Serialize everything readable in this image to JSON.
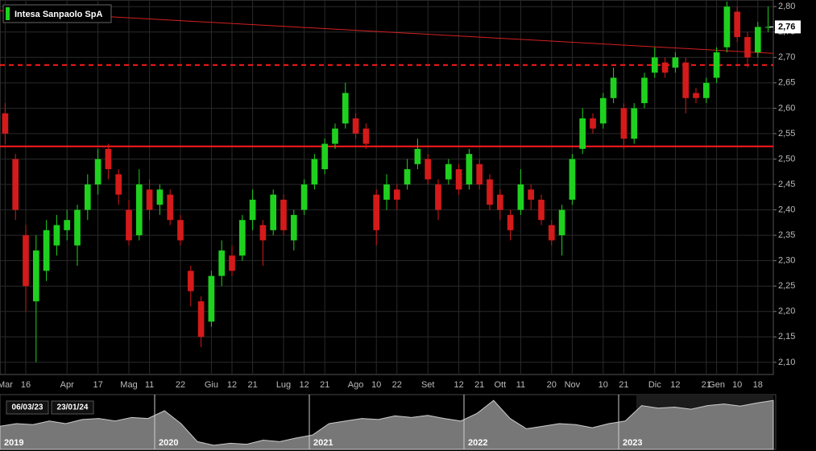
{
  "chart_data": {
    "type": "candlestick",
    "title": "Intesa Sanpaolo SpA",
    "categories": [
      "Mar",
      null,
      "16",
      null,
      null,
      null,
      "Apr",
      null,
      null,
      "17",
      null,
      null,
      "Mag",
      null,
      "11",
      null,
      null,
      "22",
      null,
      null,
      "Giu",
      null,
      "12",
      null,
      "21",
      null,
      null,
      "Lug",
      null,
      "12",
      null,
      "21",
      null,
      null,
      "Ago",
      null,
      "10",
      null,
      "22",
      null,
      null,
      "Set",
      null,
      null,
      "12",
      null,
      "21",
      null,
      "Ott",
      null,
      "11",
      null,
      null,
      "20",
      null,
      "Nov",
      null,
      null,
      "10",
      null,
      "21",
      null,
      null,
      "Dic",
      null,
      "12",
      null,
      null,
      "21",
      "Gen",
      null,
      "10",
      null,
      "18",
      null
    ],
    "open": [
      2.59,
      2.5,
      2.35,
      2.22,
      2.28,
      2.33,
      2.36,
      2.33,
      2.4,
      2.45,
      2.52,
      2.47,
      2.4,
      2.35,
      2.44,
      2.41,
      2.43,
      2.38,
      2.28,
      2.22,
      2.18,
      2.27,
      2.31,
      2.31,
      2.38,
      2.37,
      2.36,
      2.42,
      2.34,
      2.4,
      2.45,
      2.48,
      2.53,
      2.57,
      2.58,
      2.56,
      2.43,
      2.42,
      2.44,
      2.45,
      2.49,
      2.5,
      2.45,
      2.46,
      2.48,
      2.45,
      2.49,
      2.46,
      2.43,
      2.39,
      2.4,
      2.44,
      2.42,
      2.37,
      2.35,
      2.42,
      2.52,
      2.58,
      2.57,
      2.62,
      2.6,
      2.54,
      2.61,
      2.67,
      2.69,
      2.68,
      2.69,
      2.63,
      2.62,
      2.66,
      2.72,
      2.79,
      2.74,
      2.71,
      2.76
    ],
    "high": [
      2.61,
      2.51,
      2.37,
      2.35,
      2.38,
      2.39,
      2.4,
      2.41,
      2.47,
      2.52,
      2.53,
      2.48,
      2.42,
      2.48,
      2.46,
      2.45,
      2.44,
      2.39,
      2.29,
      2.23,
      2.28,
      2.34,
      2.33,
      2.39,
      2.44,
      2.38,
      2.44,
      2.43,
      2.4,
      2.46,
      2.51,
      2.54,
      2.57,
      2.65,
      2.59,
      2.57,
      2.44,
      2.47,
      2.45,
      2.5,
      2.54,
      2.51,
      2.46,
      2.5,
      2.49,
      2.52,
      2.5,
      2.47,
      2.44,
      2.4,
      2.48,
      2.45,
      2.43,
      2.38,
      2.41,
      2.51,
      2.6,
      2.59,
      2.63,
      2.68,
      2.61,
      2.61,
      2.67,
      2.72,
      2.7,
      2.71,
      2.7,
      2.64,
      2.66,
      2.72,
      2.81,
      2.8,
      2.75,
      2.77,
      2.8
    ],
    "low": [
      2.53,
      2.38,
      2.2,
      2.1,
      2.26,
      2.31,
      2.34,
      2.29,
      2.38,
      2.43,
      2.46,
      2.41,
      2.33,
      2.34,
      2.38,
      2.39,
      2.37,
      2.33,
      2.21,
      2.13,
      2.17,
      2.25,
      2.27,
      2.3,
      2.36,
      2.29,
      2.35,
      2.35,
      2.32,
      2.39,
      2.44,
      2.47,
      2.52,
      2.56,
      2.54,
      2.52,
      2.33,
      2.4,
      2.4,
      2.44,
      2.48,
      2.45,
      2.38,
      2.45,
      2.43,
      2.44,
      2.44,
      2.4,
      2.38,
      2.34,
      2.39,
      2.4,
      2.37,
      2.33,
      2.31,
      2.41,
      2.51,
      2.55,
      2.56,
      2.61,
      2.52,
      2.53,
      2.6,
      2.66,
      2.66,
      2.67,
      2.59,
      2.61,
      2.61,
      2.65,
      2.71,
      2.73,
      2.68,
      2.7,
      2.75
    ],
    "close": [
      2.55,
      2.4,
      2.25,
      2.32,
      2.36,
      2.37,
      2.38,
      2.4,
      2.45,
      2.5,
      2.48,
      2.43,
      2.34,
      2.45,
      2.4,
      2.44,
      2.38,
      2.34,
      2.24,
      2.15,
      2.27,
      2.32,
      2.28,
      2.38,
      2.42,
      2.34,
      2.43,
      2.36,
      2.39,
      2.45,
      2.5,
      2.53,
      2.56,
      2.63,
      2.55,
      2.53,
      2.36,
      2.45,
      2.42,
      2.48,
      2.52,
      2.46,
      2.4,
      2.49,
      2.44,
      2.51,
      2.45,
      2.41,
      2.4,
      2.36,
      2.45,
      2.42,
      2.38,
      2.34,
      2.4,
      2.5,
      2.58,
      2.56,
      2.62,
      2.66,
      2.54,
      2.6,
      2.66,
      2.7,
      2.67,
      2.7,
      2.62,
      2.62,
      2.65,
      2.71,
      2.8,
      2.74,
      2.7,
      2.76,
      2.76
    ],
    "up_color": "#1fd11f",
    "down_color": "#d41a1a",
    "ylim": [
      2.076,
      2.813
    ],
    "yticks": [
      {
        "value": 2.1,
        "label": "2,10"
      },
      {
        "value": 2.15,
        "label": "2,15"
      },
      {
        "value": 2.2,
        "label": "2,20"
      },
      {
        "value": 2.25,
        "label": "2,25"
      },
      {
        "value": 2.3,
        "label": "2,30"
      },
      {
        "value": 2.35,
        "label": "2,35"
      },
      {
        "value": 2.4,
        "label": "2,40"
      },
      {
        "value": 2.45,
        "label": "2,45"
      },
      {
        "value": 2.5,
        "label": "2,50"
      },
      {
        "value": 2.55,
        "label": "2,55"
      },
      {
        "value": 2.6,
        "label": "2,60"
      },
      {
        "value": 2.65,
        "label": "2,65"
      },
      {
        "value": 2.7,
        "label": "2,70"
      },
      {
        "value": 2.75,
        "label": "2,75"
      },
      {
        "value": 2.8,
        "label": "2,80"
      }
    ],
    "grid": true,
    "support": 2.525,
    "resistance": 2.685,
    "trendline": [
      2.792,
      2.708
    ],
    "last_price": {
      "value": 2.76,
      "label": "2,76"
    }
  },
  "navigator": {
    "years": [
      "2019",
      "2020",
      "2021",
      "2022",
      "2023"
    ],
    "range": [
      "06/03/23",
      "23/01/24"
    ],
    "values": [
      0.45,
      0.5,
      0.48,
      0.55,
      0.5,
      0.58,
      0.6,
      0.55,
      0.62,
      0.6,
      0.75,
      0.5,
      0.15,
      0.08,
      0.12,
      0.1,
      0.18,
      0.15,
      0.22,
      0.28,
      0.5,
      0.55,
      0.6,
      0.58,
      0.65,
      0.62,
      0.66,
      0.6,
      0.55,
      0.7,
      0.95,
      0.6,
      0.4,
      0.45,
      0.5,
      0.48,
      0.42,
      0.5,
      0.55,
      0.85,
      0.8,
      0.82,
      0.78,
      0.85,
      0.88,
      0.84,
      0.9,
      0.95
    ]
  }
}
